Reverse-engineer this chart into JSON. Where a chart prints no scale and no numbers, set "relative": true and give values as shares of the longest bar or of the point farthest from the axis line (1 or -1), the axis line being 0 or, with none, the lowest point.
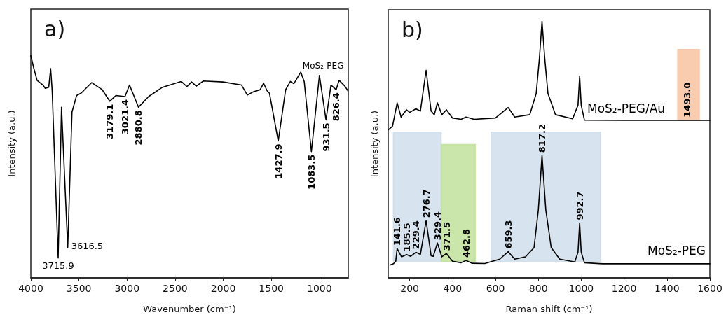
{
  "chart_data": [
    {
      "type": "line",
      "title": "a)",
      "xlabel": "Wavenumber (cm⁻¹)",
      "ylabel": "Intensity (a.u.)",
      "relative": true,
      "xlim": [
        4000,
        700
      ],
      "xticks": [
        4000,
        3500,
        3000,
        2500,
        2000,
        1500,
        1000
      ],
      "tick_labels": "x",
      "grid": false,
      "legend": false,
      "marker": "none",
      "line_style": "solid",
      "series": [
        {
          "name": "MoS₂-PEG",
          "color": "#000000",
          "x": [
            4000,
            3971,
            3935,
            3874,
            3850,
            3814,
            3794,
            3778,
            3715.9,
            3681,
            3616.5,
            3572,
            3524,
            3476,
            3367,
            3258,
            3179.1,
            3114,
            3021.4,
            2974,
            2880.8,
            2776,
            2631,
            2437,
            2377,
            2329,
            2280,
            2208,
            2003,
            1810,
            1749,
            1689,
            1616,
            1580,
            1544,
            1520,
            1427.9,
            1351,
            1302,
            1266,
            1194,
            1158,
            1083.5,
            1000,
            931.5,
            880,
            826.4,
            795,
            735,
            704
          ],
          "values": [
            1.0,
            0.947,
            0.889,
            0.868,
            0.853,
            0.858,
            0.942,
            0.842,
            0.089,
            0.768,
            0.137,
            0.747,
            0.821,
            0.832,
            0.879,
            0.847,
            0.795,
            0.821,
            0.816,
            0.868,
            0.768,
            0.816,
            0.858,
            0.884,
            0.861,
            0.882,
            0.863,
            0.886,
            0.882,
            0.868,
            0.823,
            0.837,
            0.847,
            0.876,
            0.842,
            0.832,
            0.616,
            0.847,
            0.884,
            0.874,
            0.926,
            0.884,
            0.568,
            0.911,
            0.711,
            0.868,
            0.847,
            0.889,
            0.863,
            0.842
          ]
        }
      ],
      "annotations": [
        {
          "text": "3715.9",
          "x": 3715.9,
          "y": 0.089
        },
        {
          "text": "3616.5",
          "x": 3616.5,
          "y": 0.137
        },
        {
          "text": "3179.1",
          "x": 3179.1,
          "y": 0.795
        },
        {
          "text": "3021.4",
          "x": 3021.4,
          "y": 0.816
        },
        {
          "text": "2880.8",
          "x": 2880.8,
          "y": 0.768
        },
        {
          "text": "1427.9",
          "x": 1427.9,
          "y": 0.616
        },
        {
          "text": "1083.5",
          "x": 1083.5,
          "y": 0.568
        },
        {
          "text": "931.5",
          "x": 931.5,
          "y": 0.711
        },
        {
          "text": "826.4",
          "x": 826.4,
          "y": 0.847
        }
      ]
    },
    {
      "type": "line",
      "title": "b)",
      "xlabel": "Raman shift (cm⁻¹)",
      "ylabel": "Intensity (a.u.)",
      "relative": true,
      "xlim": [
        100,
        1600
      ],
      "xticks": [
        200,
        400,
        600,
        800,
        1000,
        1200,
        1400,
        1600
      ],
      "tick_labels": "x",
      "grid": false,
      "legend": false,
      "marker": "none",
      "line_style": "solid",
      "series": [
        {
          "name": "MoS₂-PEG/Au",
          "color": "#000000",
          "x": [
            100,
            120,
            141.6,
            160,
            185,
            200,
            229,
            250,
            276.7,
            300,
            315,
            329.4,
            350,
            371.5,
            400,
            440,
            462.8,
            500,
            600,
            659.3,
            690,
            760,
            790,
            805,
            817.2,
            830,
            845,
            880,
            960,
            985,
            992.7,
            1000,
            1015,
            1200,
            1600
          ],
          "values": [
            0.577,
            0.591,
            0.682,
            0.627,
            0.655,
            0.645,
            0.659,
            0.65,
            0.809,
            0.65,
            0.636,
            0.682,
            0.636,
            0.655,
            0.623,
            0.618,
            0.627,
            0.618,
            0.623,
            0.664,
            0.627,
            0.636,
            0.718,
            0.855,
            1.0,
            0.855,
            0.718,
            0.636,
            0.62,
            0.673,
            0.786,
            0.673,
            0.615,
            0.614,
            0.614
          ]
        },
        {
          "name": "MoS₂-PEG",
          "color": "#000000",
          "x": [
            108,
            124,
            135,
            141.6,
            162,
            185.5,
            205,
            229.4,
            250,
            276.7,
            300,
            310,
            329.4,
            350,
            371.5,
            400,
            440,
            462.8,
            490,
            550,
            620,
            659.3,
            690,
            740,
            780,
            800,
            817.2,
            835,
            860,
            900,
            970,
            985,
            992.7,
            1000,
            1015,
            1100,
            1300,
            1600
          ],
          "values": [
            0.05,
            0.055,
            0.064,
            0.114,
            0.082,
            0.091,
            0.084,
            0.1,
            0.091,
            0.223,
            0.086,
            0.084,
            0.136,
            0.082,
            0.095,
            0.065,
            0.059,
            0.068,
            0.057,
            0.056,
            0.073,
            0.102,
            0.073,
            0.082,
            0.118,
            0.264,
            0.477,
            0.264,
            0.118,
            0.073,
            0.062,
            0.1,
            0.214,
            0.1,
            0.059,
            0.055,
            0.055,
            0.055
          ]
        }
      ],
      "bands": [
        {
          "axis": "x",
          "from": 124,
          "to": 347,
          "color": "#c9d9e8"
        },
        {
          "axis": "x",
          "from": 347,
          "to": 506,
          "color": "#b9de8f"
        },
        {
          "axis": "x",
          "from": 580,
          "to": 1090,
          "color": "#c9d9e8"
        },
        {
          "axis": "x",
          "from": 1450,
          "to": 1551,
          "color": "#f7b994"
        }
      ],
      "annotations": [
        {
          "text": "141.6",
          "x": 141.6,
          "y": 0.114
        },
        {
          "text": "185.5",
          "x": 185.5,
          "y": 0.091
        },
        {
          "text": "229.4",
          "x": 229.4,
          "y": 0.1
        },
        {
          "text": "276.7",
          "x": 276.7,
          "y": 0.223
        },
        {
          "text": "329.4",
          "x": 329.4,
          "y": 0.136
        },
        {
          "text": "371.5",
          "x": 371.5,
          "y": 0.095
        },
        {
          "text": "462.8",
          "x": 462.8,
          "y": 0.068
        },
        {
          "text": "659.3",
          "x": 659.3,
          "y": 0.102
        },
        {
          "text": "817.2",
          "x": 817.2,
          "y": 0.477
        },
        {
          "text": "992.7",
          "x": 992.7,
          "y": 0.214
        },
        {
          "text": "1493.0",
          "x": 1493,
          "y": 0.614
        }
      ]
    }
  ]
}
